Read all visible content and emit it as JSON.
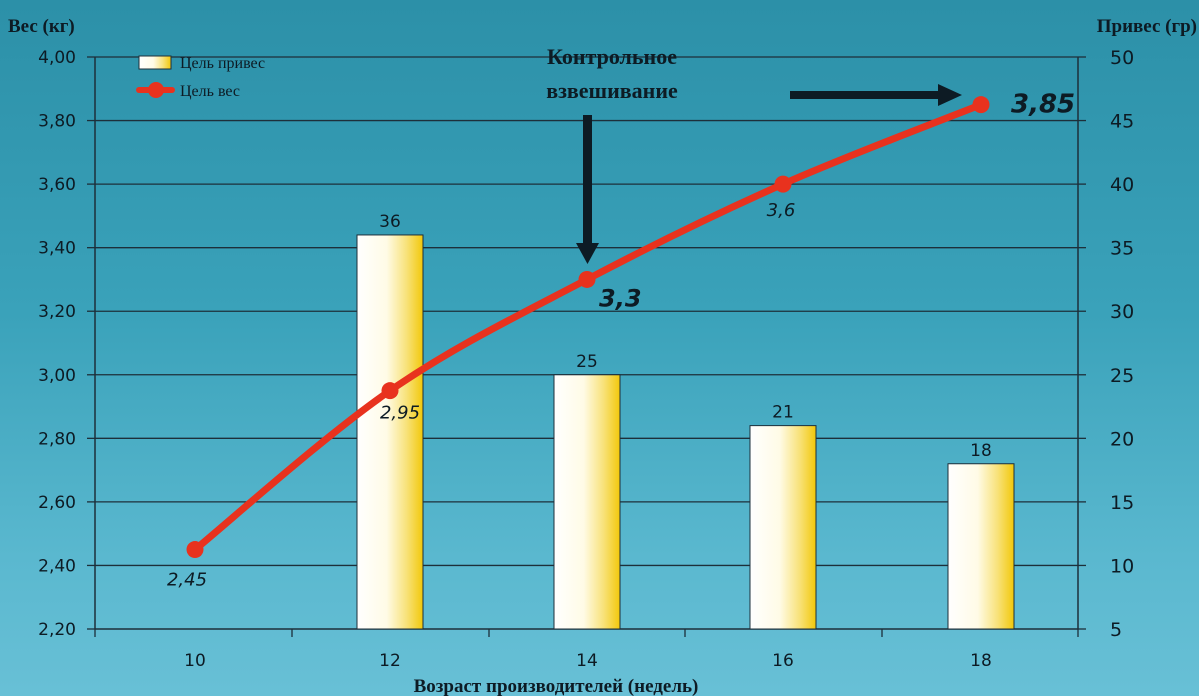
{
  "chart_data": {
    "type": "bar+line",
    "categories": [
      "10",
      "12",
      "14",
      "16",
      "18"
    ],
    "xlabel": "Возраст производителей (недель)",
    "y_left": {
      "label": "Вес (кг)",
      "range": [
        2.2,
        4.0
      ],
      "ticks": [
        "2,20",
        "2,40",
        "2,60",
        "2,80",
        "3,00",
        "3,20",
        "3,40",
        "3,60",
        "3,80",
        "4,00"
      ]
    },
    "y_right": {
      "label": "Привес (гр)",
      "range": [
        5,
        50
      ],
      "ticks": [
        "5",
        "10",
        "15",
        "20",
        "25",
        "30",
        "35",
        "40",
        "45",
        "50"
      ]
    },
    "series": [
      {
        "name": "Цель привес",
        "type": "bar",
        "axis": "right",
        "x": [
          "12",
          "14",
          "16",
          "18"
        ],
        "values": [
          36,
          25,
          21,
          18
        ],
        "labels": [
          "36",
          "25",
          "21",
          "18"
        ]
      },
      {
        "name": "Цель вес",
        "type": "line",
        "axis": "left",
        "x": [
          "10",
          "12",
          "14",
          "16",
          "18"
        ],
        "values": [
          2.45,
          2.95,
          3.3,
          3.6,
          3.85
        ],
        "labels": [
          "2,45",
          "2,95",
          "3,3",
          "3,6",
          "3,85"
        ]
      }
    ],
    "annotation": {
      "text_line1": "Контрольное",
      "text_line2": "взвешивание"
    },
    "grid": true,
    "legend_position": "top-left",
    "colors": {
      "line": "#e8321e",
      "bar_light": "#ffffff",
      "bar_dark": "#f2c80a",
      "grid": "#1d2f3a",
      "arrow": "#0d1b24"
    }
  }
}
